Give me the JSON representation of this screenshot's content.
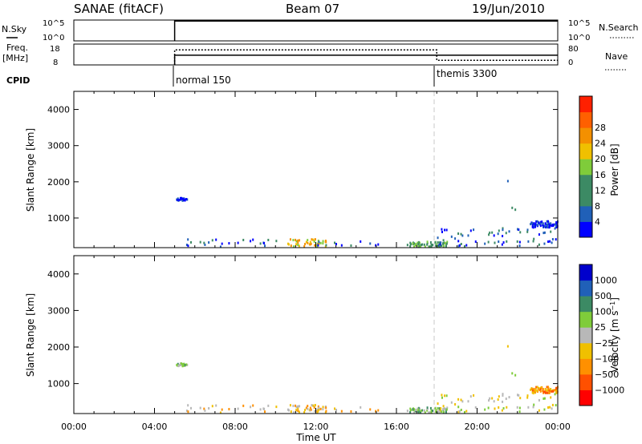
{
  "header": {
    "station": "SANAE (fitACF)",
    "beam": "Beam 07",
    "date": "19/Jun/2010"
  },
  "colors": {
    "power": [
      "#0000ff",
      "#2060b8",
      "#3c8a64",
      "#3c8a64",
      "#7fcc3a",
      "#f0c000",
      "#f49000",
      "#ff6000",
      "#ff2000"
    ],
    "velocity": [
      "#ff0000",
      "#ff5000",
      "#ff9000",
      "#f0c000",
      "#b8b8b8",
      "#7fcc3a",
      "#3c8a64",
      "#2060b8",
      "#0000cc"
    ],
    "background": "#ffffff",
    "divider": "#c8c8c8"
  },
  "chart_data": [
    {
      "type": "line",
      "name": "nsky-nsearch-panel",
      "ylabel": "N.Sky",
      "ylabel_right": "N.Search",
      "ylim_left": [
        "10^0",
        "10^5"
      ],
      "ylim_right": [
        "10^0",
        "10^5"
      ],
      "left_ticks": [
        "10^5",
        "10^0"
      ],
      "right_ticks": [
        "10^5",
        "10^0"
      ],
      "xlim": [
        0,
        24
      ],
      "series_nsky": {
        "x": [
          5.0,
          5.0,
          18.0,
          24.0
        ],
        "y_frac": [
          0.0,
          0.95,
          0.95,
          0.95
        ]
      },
      "series_nsearch": {
        "x": [
          18.0,
          24.0
        ],
        "y_frac": [
          0.98,
          0.98
        ]
      }
    },
    {
      "type": "line",
      "name": "freq-nave-panel",
      "ylabel": "Freq.",
      "ylabel_unit": "[MHz]",
      "ylabel_right": "Nave",
      "left_ticks": [
        "18",
        "8"
      ],
      "right_ticks": [
        "80",
        "0"
      ],
      "xlim": [
        0,
        24
      ],
      "freq": {
        "x": [
          5.0,
          5.0,
          24.0
        ],
        "y": [
          0,
          12.5,
          12.5
        ]
      },
      "nave": {
        "x": [
          5.0,
          5.0,
          18.0,
          18.0,
          24.0
        ],
        "y": [
          0,
          65,
          65,
          20,
          20
        ]
      }
    },
    {
      "type": "table",
      "name": "cpid",
      "label": "CPID",
      "segments": [
        {
          "start": 5.0,
          "label": "normal 150"
        },
        {
          "start": 18.0,
          "label": "themis 3300"
        }
      ]
    },
    {
      "type": "heatmap",
      "name": "power",
      "ylabel": "Slant Range [km]",
      "ylim": [
        180,
        4500
      ],
      "yticks": [
        1000,
        2000,
        3000,
        4000
      ],
      "colorbar_label": "Power [dB]",
      "colorbar_ticks": [
        "4",
        "8",
        "12",
        "16",
        "20",
        "24",
        "28"
      ]
    },
    {
      "type": "heatmap",
      "name": "velocity",
      "ylabel": "Slant Range [km]",
      "xlabel": "Time UT",
      "ylim": [
        180,
        4500
      ],
      "yticks": [
        1000,
        2000,
        3000,
        4000
      ],
      "colorbar_label": "Velocity [m s^-1]",
      "colorbar_ticks": [
        "1000",
        "500",
        "100",
        "25",
        "−25",
        "−100",
        "−500",
        "−1000"
      ],
      "xlim": [
        0,
        24
      ],
      "xticks": [
        "00:00",
        "04:00",
        "08:00",
        "12:00",
        "16:00",
        "20:00",
        "00:00"
      ]
    }
  ],
  "scatter_regions": [
    {
      "t0": 5.0,
      "t1": 5.6,
      "r0": 1460,
      "r1": 1540,
      "density": 0.6,
      "power": 0,
      "vel": 5
    },
    {
      "t0": 5.0,
      "t1": 11.5,
      "r0": 190,
      "r1": 420,
      "density": 0.06,
      "power": 1,
      "vel": 3
    },
    {
      "t0": 10.5,
      "t1": 12.5,
      "r0": 190,
      "r1": 400,
      "density": 0.35,
      "power": 5,
      "vel": 3
    },
    {
      "t0": 12.0,
      "t1": 16.5,
      "r0": 190,
      "r1": 350,
      "density": 0.04,
      "power": 1,
      "vel": 3
    },
    {
      "t0": 16.5,
      "t1": 18.5,
      "r0": 190,
      "r1": 330,
      "density": 0.55,
      "power": 3,
      "vel": 5
    },
    {
      "t0": 18.0,
      "t1": 24.0,
      "r0": 190,
      "r1": 720,
      "density": 0.18,
      "power": 1,
      "vel": 4
    },
    {
      "t0": 20.0,
      "t1": 23.0,
      "r0": 400,
      "r1": 1800,
      "density": 0.02,
      "power": 1,
      "vel": 4
    },
    {
      "t0": 22.6,
      "t1": 24.0,
      "r0": 720,
      "r1": 900,
      "density": 0.85,
      "power": 0,
      "vel": 2
    },
    {
      "t0": 21.0,
      "t1": 22.0,
      "r0": 1900,
      "r1": 2400,
      "density": 0.01,
      "power": 1,
      "vel": 4
    }
  ]
}
